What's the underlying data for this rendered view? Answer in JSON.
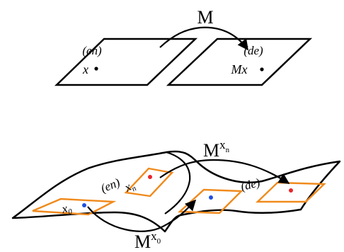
{
  "colors": {
    "stroke": "#000000",
    "background": "#ffffff",
    "patch": "#f08a1c",
    "point_red": "#e8262a",
    "point_blue": "#1f4fe0"
  },
  "top_panel": {
    "map_label": "M",
    "left_plane_label": "(en)",
    "right_plane_label": "(de)",
    "left_point_label": "x",
    "right_point_label": "Mx"
  },
  "bottom_panel": {
    "upper_map_base": "M",
    "upper_map_superscript": "x",
    "upper_map_subscript": "n",
    "lower_map_base": "M",
    "lower_map_superscript": "x",
    "lower_map_subscript": "0",
    "left_surface_label": "(en)",
    "right_surface_label": "(de)",
    "patch_label_n": "x",
    "patch_label_n_sub": "n",
    "patch_label_0": "x",
    "patch_label_0_sub": "0"
  }
}
